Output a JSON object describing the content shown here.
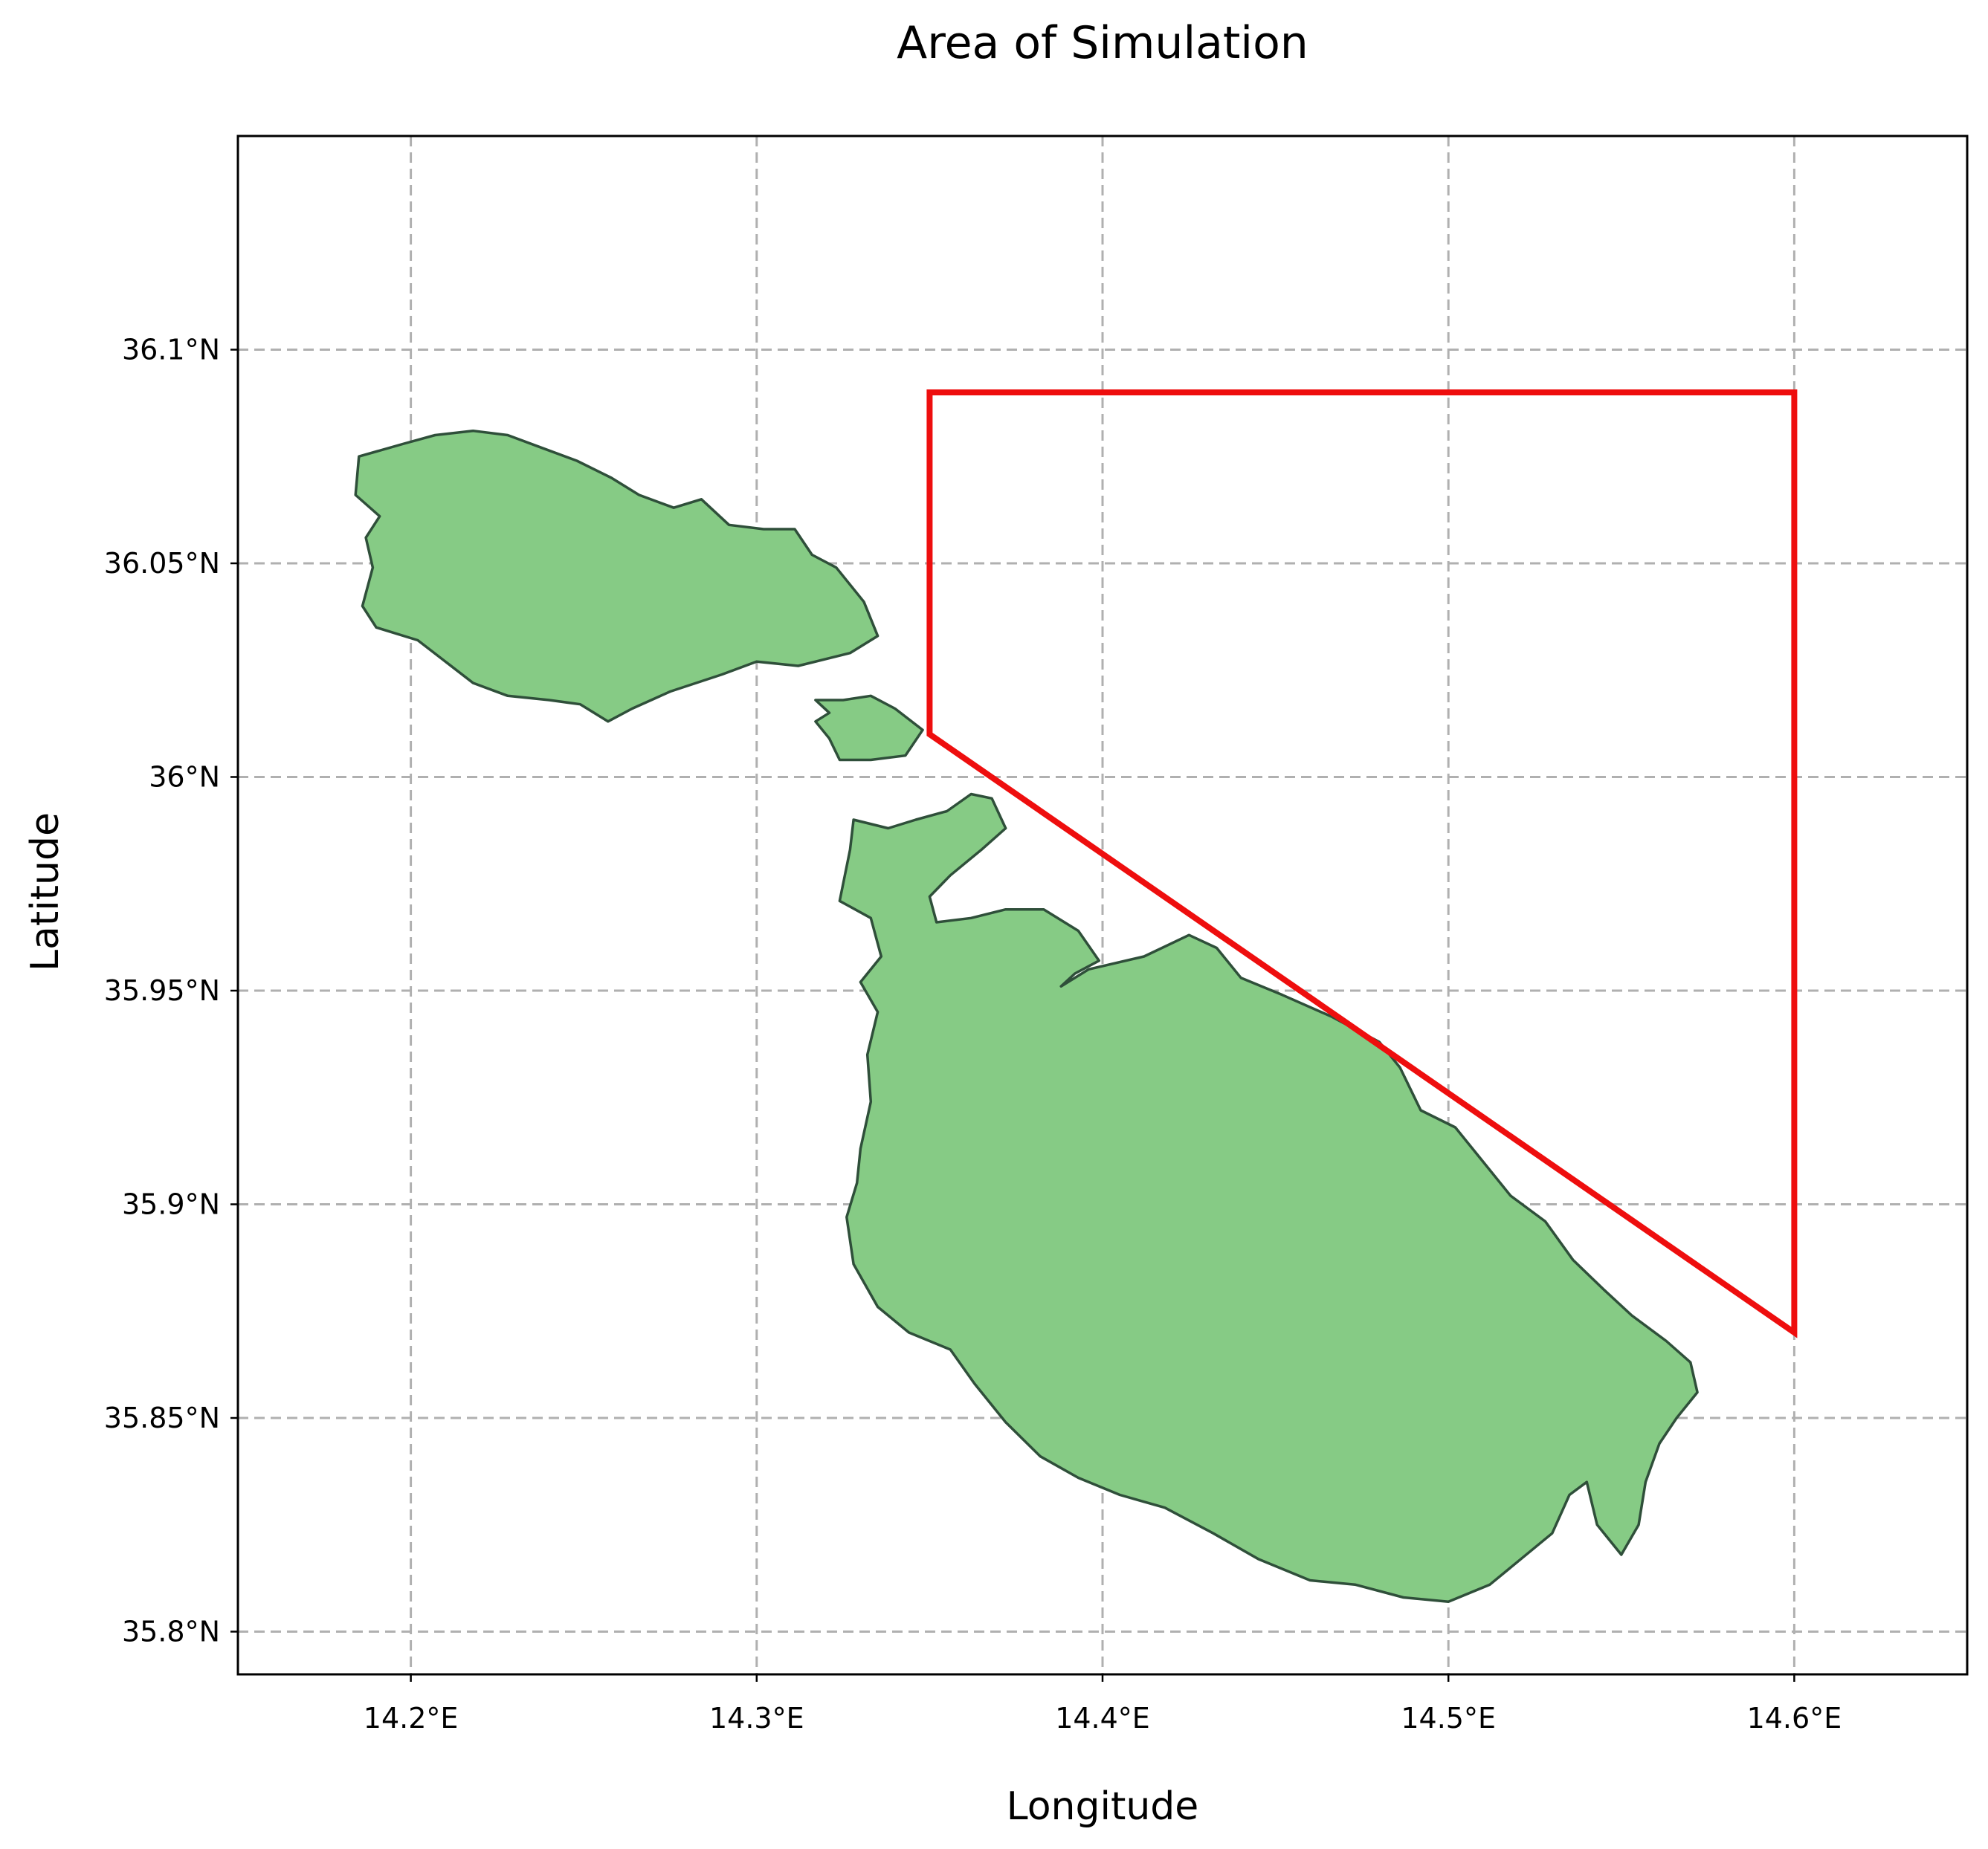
{
  "title": "Area of Simulation",
  "xlabel": "Longitude",
  "ylabel": "Latitude",
  "colors": {
    "land_fill": "#86cb85",
    "land_edge": "#2f4f3a",
    "simulation_area": "#ee0e0e",
    "grid": "#b0b0b0"
  },
  "axes": {
    "xlim": [
      14.15,
      14.65
    ],
    "ylim": [
      35.79,
      36.15
    ],
    "grid": true,
    "x_ticks": [
      {
        "value": 14.2,
        "label": "14.2°E"
      },
      {
        "value": 14.3,
        "label": "14.3°E"
      },
      {
        "value": 14.4,
        "label": "14.4°E"
      },
      {
        "value": 14.5,
        "label": "14.5°E"
      },
      {
        "value": 14.6,
        "label": "14.6°E"
      }
    ],
    "y_ticks": [
      {
        "value": 35.8,
        "label": "35.8°N"
      },
      {
        "value": 35.85,
        "label": "35.85°N"
      },
      {
        "value": 35.9,
        "label": "35.9°N"
      },
      {
        "value": 35.95,
        "label": "35.95°N"
      },
      {
        "value": 36.0,
        "label": "36°N"
      },
      {
        "value": 36.05,
        "label": "36.05°N"
      },
      {
        "value": 36.1,
        "label": "36.1°N"
      }
    ]
  },
  "simulation_area": {
    "polygon": [
      [
        14.35,
        36.09
      ],
      [
        14.6,
        36.09
      ],
      [
        14.6,
        35.87
      ],
      [
        14.35,
        36.01
      ]
    ]
  },
  "islands": [
    {
      "polygon": [
        [
          14.185,
          36.075
        ],
        [
          14.198,
          36.078
        ],
        [
          14.207,
          36.08
        ],
        [
          14.218,
          36.081
        ],
        [
          14.228,
          36.08
        ],
        [
          14.238,
          36.077
        ],
        [
          14.248,
          36.074
        ],
        [
          14.258,
          36.07
        ],
        [
          14.266,
          36.066
        ],
        [
          14.276,
          36.063
        ],
        [
          14.284,
          36.065
        ],
        [
          14.292,
          36.059
        ],
        [
          14.302,
          36.058
        ],
        [
          14.311,
          36.058
        ],
        [
          14.316,
          36.052
        ],
        [
          14.323,
          36.049
        ],
        [
          14.331,
          36.041
        ],
        [
          14.335,
          36.033
        ],
        [
          14.327,
          36.029
        ],
        [
          14.312,
          36.026
        ],
        [
          14.3,
          36.027
        ],
        [
          14.29,
          36.024
        ],
        [
          14.275,
          36.02
        ],
        [
          14.264,
          36.016
        ],
        [
          14.257,
          36.013
        ],
        [
          14.249,
          36.017
        ],
        [
          14.24,
          36.018
        ],
        [
          14.228,
          36.019
        ],
        [
          14.218,
          36.022
        ],
        [
          14.21,
          36.027
        ],
        [
          14.202,
          36.032
        ],
        [
          14.19,
          36.035
        ],
        [
          14.186,
          36.04
        ],
        [
          14.189,
          36.049
        ],
        [
          14.187,
          36.056
        ],
        [
          14.191,
          36.061
        ],
        [
          14.184,
          36.066
        ],
        [
          14.185,
          36.075
        ]
      ]
    },
    {
      "polygon": [
        [
          14.317,
          36.018
        ],
        [
          14.325,
          36.018
        ],
        [
          14.333,
          36.019
        ],
        [
          14.34,
          36.016
        ],
        [
          14.348,
          36.011
        ],
        [
          14.343,
          36.005
        ],
        [
          14.333,
          36.004
        ],
        [
          14.324,
          36.004
        ],
        [
          14.321,
          36.009
        ],
        [
          14.317,
          36.013
        ],
        [
          14.321,
          36.015
        ],
        [
          14.317,
          36.018
        ]
      ]
    },
    {
      "polygon": [
        [
          14.328,
          35.99
        ],
        [
          14.338,
          35.988
        ],
        [
          14.346,
          35.99
        ],
        [
          14.355,
          35.992
        ],
        [
          14.362,
          35.996
        ],
        [
          14.368,
          35.995
        ],
        [
          14.372,
          35.988
        ],
        [
          14.365,
          35.983
        ],
        [
          14.356,
          35.977
        ],
        [
          14.35,
          35.972
        ],
        [
          14.352,
          35.966
        ],
        [
          14.362,
          35.967
        ],
        [
          14.372,
          35.969
        ],
        [
          14.383,
          35.969
        ],
        [
          14.393,
          35.964
        ],
        [
          14.399,
          35.957
        ],
        [
          14.392,
          35.954
        ],
        [
          14.388,
          35.951
        ],
        [
          14.396,
          35.955
        ],
        [
          14.412,
          35.958
        ],
        [
          14.425,
          35.963
        ],
        [
          14.433,
          35.96
        ],
        [
          14.44,
          35.953
        ],
        [
          14.452,
          35.949
        ],
        [
          14.466,
          35.944
        ],
        [
          14.48,
          35.938
        ],
        [
          14.486,
          35.932
        ],
        [
          14.492,
          35.922
        ],
        [
          14.502,
          35.918
        ],
        [
          14.51,
          35.91
        ],
        [
          14.518,
          35.902
        ],
        [
          14.528,
          35.896
        ],
        [
          14.536,
          35.887
        ],
        [
          14.545,
          35.88
        ],
        [
          14.553,
          35.874
        ],
        [
          14.563,
          35.868
        ],
        [
          14.57,
          35.863
        ],
        [
          14.572,
          35.856
        ],
        [
          14.566,
          35.85
        ],
        [
          14.561,
          35.844
        ],
        [
          14.557,
          35.835
        ],
        [
          14.555,
          35.825
        ],
        [
          14.55,
          35.818
        ],
        [
          14.543,
          35.825
        ],
        [
          14.54,
          35.835
        ],
        [
          14.535,
          35.832
        ],
        [
          14.53,
          35.823
        ],
        [
          14.521,
          35.817
        ],
        [
          14.512,
          35.811
        ],
        [
          14.5,
          35.807
        ],
        [
          14.487,
          35.808
        ],
        [
          14.473,
          35.811
        ],
        [
          14.46,
          35.812
        ],
        [
          14.445,
          35.817
        ],
        [
          14.432,
          35.823
        ],
        [
          14.418,
          35.829
        ],
        [
          14.405,
          35.832
        ],
        [
          14.393,
          35.836
        ],
        [
          14.382,
          35.841
        ],
        [
          14.372,
          35.849
        ],
        [
          14.363,
          35.858
        ],
        [
          14.356,
          35.866
        ],
        [
          14.344,
          35.87
        ],
        [
          14.335,
          35.876
        ],
        [
          14.328,
          35.886
        ],
        [
          14.326,
          35.897
        ],
        [
          14.329,
          35.905
        ],
        [
          14.33,
          35.913
        ],
        [
          14.333,
          35.924
        ],
        [
          14.332,
          35.935
        ],
        [
          14.335,
          35.945
        ],
        [
          14.33,
          35.952
        ],
        [
          14.336,
          35.958
        ],
        [
          14.333,
          35.967
        ],
        [
          14.324,
          35.971
        ],
        [
          14.327,
          35.983
        ],
        [
          14.328,
          35.99
        ]
      ]
    }
  ]
}
